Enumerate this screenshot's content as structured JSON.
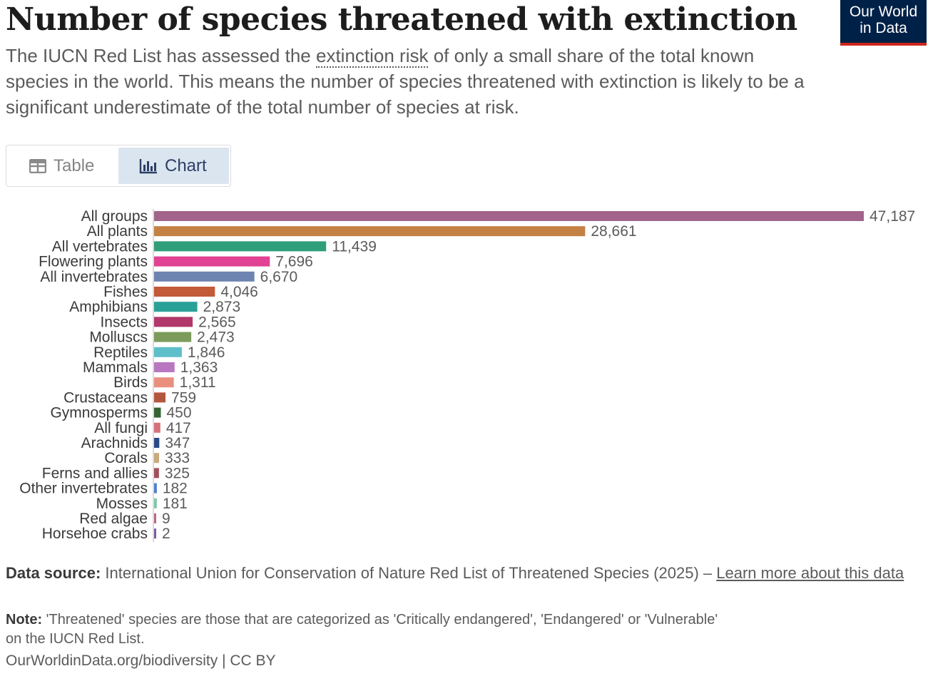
{
  "header": {
    "title": "Number of species threatened with extinction",
    "subtitle_pre": "The IUCN Red List has assessed the ",
    "subtitle_term": "extinction risk",
    "subtitle_post": " of only a small share of the total known species in the world. This means the number of species threatened with extinction is likely to be a significant underestimate of the total number of species at risk.",
    "logo_line1": "Our World",
    "logo_line2": "in Data"
  },
  "tabs": {
    "table": "Table",
    "chart": "Chart"
  },
  "chart_data": {
    "type": "bar",
    "orientation": "horizontal",
    "title": "Number of species threatened with extinction",
    "categories": [
      "All groups",
      "All plants",
      "All vertebrates",
      "Flowering plants",
      "All invertebrates",
      "Fishes",
      "Amphibians",
      "Insects",
      "Molluscs",
      "Reptiles",
      "Mammals",
      "Birds",
      "Crustaceans",
      "Gymnosperms",
      "All fungi",
      "Arachnids",
      "Corals",
      "Ferns and allies",
      "Other invertebrates",
      "Mosses",
      "Red algae",
      "Horsehoe crabs"
    ],
    "values": [
      47187,
      28661,
      11439,
      7696,
      6670,
      4046,
      2873,
      2565,
      2473,
      1846,
      1363,
      1311,
      759,
      450,
      417,
      347,
      333,
      325,
      182,
      181,
      9,
      2
    ],
    "labels": [
      "47,187",
      "28,661",
      "11,439",
      "7,696",
      "6,670",
      "4,046",
      "2,873",
      "2,565",
      "2,473",
      "1,846",
      "1,363",
      "1,311",
      "759",
      "450",
      "417",
      "347",
      "333",
      "325",
      "182",
      "181",
      "9",
      "2"
    ],
    "colors": [
      "#a2648a",
      "#c48144",
      "#2f9e7b",
      "#e14293",
      "#6d84b0",
      "#c35a38",
      "#2aa196",
      "#b2376b",
      "#7c9b5b",
      "#5ebfcb",
      "#b977c0",
      "#ea8f7e",
      "#b3573e",
      "#356334",
      "#d7707a",
      "#2a4a85",
      "#c9aa7b",
      "#a1505b",
      "#4b7ed0",
      "#7fc6a6",
      "#ba6b81",
      "#7b5d9c"
    ],
    "xlim": [
      0,
      47187
    ],
    "xlabel": "",
    "ylabel": "",
    "grid": false
  },
  "footer": {
    "source_label": "Data source:",
    "source_text": " International Union for Conservation of Nature Red List of Threatened Species (2025) – ",
    "source_link": "Learn more about this data",
    "note_label": "Note:",
    "note_text": " 'Threatened' species are those that are categorized as 'Critically endangered', 'Endangered' or 'Vulnerable' on the IUCN Red List.",
    "credit": "OurWorldinData.org/biodiversity | CC BY"
  }
}
